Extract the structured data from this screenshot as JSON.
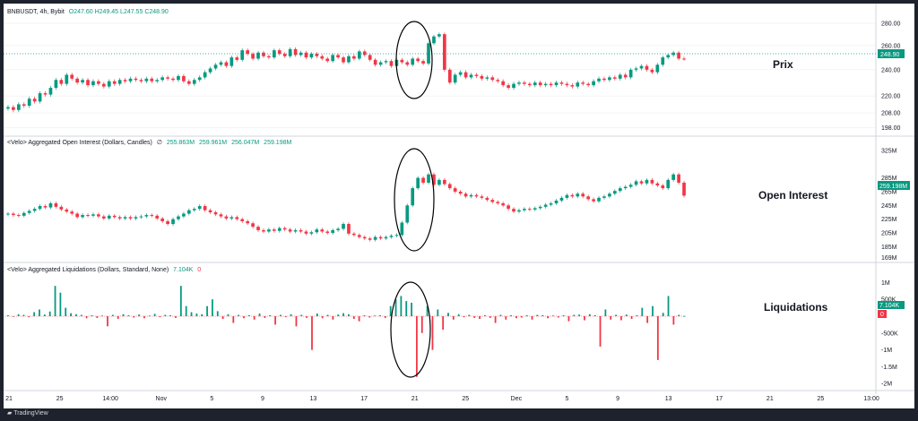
{
  "header": {
    "symbol": "BNBUSDT, 4h, Bybit",
    "ohlc": {
      "o": "247.60",
      "h": "249.45",
      "l": "247.55",
      "c": "248.90"
    }
  },
  "panes": {
    "oi": {
      "title": "<Velo> Aggregated Open Interest (Dollars, Candles)",
      "sym": "∅",
      "o": "255.863M",
      "h": "259.961M",
      "l": "256.047M",
      "c": "259.198M"
    },
    "liq": {
      "title": "<Velo> Aggregated Liquidations (Dollars, Standard, None)",
      "v1": "7.104K",
      "v2": "0"
    }
  },
  "annotations": {
    "price": "Prix",
    "oi": "Open Interest",
    "liq": "Liquidations"
  },
  "badges": {
    "price": "248.90",
    "oi": "259.198M",
    "liq": "7.104K",
    "liq_zero": "0"
  },
  "footer": {
    "brand": "TradingView"
  },
  "colors": {
    "up": "#089981",
    "down": "#f23645",
    "ellipse": "#000000",
    "grid": "#e6e8ec"
  },
  "chart_data": [
    {
      "type": "candlestick",
      "title": "BNBUSDT, 4h, Bybit",
      "y_ticks": [
        "280.00",
        "260.00",
        "240.00",
        "220.00",
        "208.00",
        "198.00"
      ],
      "ylim": [
        196,
        285
      ],
      "y_scale": "log",
      "x_ticks": [
        "21",
        "25",
        "14:00",
        "Nov",
        "5",
        "9",
        "13",
        "17",
        "21",
        "25",
        "Dec",
        "5",
        "9",
        "13",
        "17",
        "21",
        "25",
        "13:00"
      ],
      "last_close": 248.9,
      "closes": [
        212,
        210,
        214,
        213,
        218,
        216,
        222,
        221,
        226,
        232,
        229,
        236,
        233,
        230,
        232,
        228,
        231,
        229,
        227,
        231,
        229,
        232,
        231,
        233,
        232,
        231,
        233,
        231,
        232,
        234,
        233,
        232,
        235,
        231,
        229,
        232,
        234,
        238,
        241,
        244,
        246,
        243,
        250,
        248,
        256,
        253,
        249,
        254,
        251,
        250,
        256,
        253,
        251,
        257,
        252,
        254,
        250,
        253,
        251,
        249,
        247,
        252,
        250,
        246,
        251,
        249,
        255,
        252,
        248,
        244,
        246,
        247,
        243,
        248,
        246,
        244,
        249,
        247,
        245,
        262,
        268,
        270,
        240,
        230,
        236,
        238,
        234,
        236,
        235,
        233,
        234,
        232,
        231,
        228,
        226,
        229,
        230,
        229,
        228,
        230,
        228,
        229,
        228,
        230,
        229,
        228,
        227,
        230,
        229,
        228,
        231,
        233,
        232,
        234,
        233,
        236,
        234,
        240,
        241,
        243,
        240,
        238,
        244,
        250,
        252,
        254,
        249,
        248.9
      ]
    },
    {
      "type": "candlestick",
      "title": "<Velo> Aggregated Open Interest (Dollars, Candles)",
      "y_ticks": [
        "325M",
        "285M",
        "265M",
        "245M",
        "225M",
        "205M",
        "185M",
        "169M"
      ],
      "ylim": [
        166,
        330
      ],
      "last_close": 259.198,
      "closes": [
        233,
        231,
        230,
        234,
        237,
        240,
        244,
        242,
        248,
        243,
        239,
        236,
        233,
        228,
        231,
        230,
        232,
        229,
        226,
        230,
        228,
        226,
        228,
        226,
        228,
        229,
        231,
        230,
        226,
        222,
        218,
        225,
        229,
        233,
        238,
        240,
        244,
        238,
        235,
        232,
        229,
        226,
        228,
        225,
        222,
        219,
        214,
        209,
        207,
        210,
        208,
        212,
        210,
        207,
        209,
        207,
        204,
        206,
        210,
        207,
        205,
        209,
        211,
        218,
        204,
        202,
        199,
        197,
        195,
        199,
        197,
        199,
        201,
        202,
        220,
        245,
        270,
        285,
        278,
        290,
        275,
        282,
        276,
        270,
        265,
        262,
        258,
        260,
        258,
        256,
        253,
        250,
        248,
        245,
        240,
        236,
        238,
        240,
        239,
        241,
        243,
        246,
        248,
        252,
        256,
        260,
        258,
        262,
        258,
        254,
        251,
        256,
        258,
        262,
        266,
        270,
        272,
        275,
        280,
        277,
        282,
        277,
        274,
        270,
        282,
        290,
        278,
        259.198
      ]
    },
    {
      "type": "bar",
      "title": "<Velo> Aggregated Liquidations (Dollars, Standard, None)",
      "y_ticks": [
        "1M",
        "500K",
        "-500K",
        "-1M",
        "-1.5M",
        "-2M"
      ],
      "ylim": [
        -2100000,
        1250000
      ],
      "last_value": 7104,
      "values": [
        30000,
        -20000,
        60000,
        40000,
        -30000,
        120000,
        200000,
        50000,
        140000,
        900000,
        700000,
        250000,
        90000,
        60000,
        40000,
        -60000,
        30000,
        -50000,
        20000,
        -300000,
        40000,
        -80000,
        60000,
        30000,
        -40000,
        50000,
        -60000,
        20000,
        70000,
        -30000,
        40000,
        30000,
        -50000,
        900000,
        300000,
        120000,
        80000,
        60000,
        300000,
        500000,
        150000,
        -80000,
        60000,
        -200000,
        40000,
        -60000,
        30000,
        -100000,
        80000,
        -50000,
        30000,
        -250000,
        40000,
        -30000,
        60000,
        -300000,
        40000,
        -50000,
        -1000000,
        80000,
        -60000,
        40000,
        -100000,
        50000,
        90000,
        60000,
        -80000,
        -150000,
        30000,
        -40000,
        20000,
        30000,
        -50000,
        300000,
        500000,
        600000,
        450000,
        400000,
        -1800000,
        -500000,
        300000,
        -1000000,
        200000,
        -400000,
        100000,
        -100000,
        60000,
        -30000,
        40000,
        -50000,
        -80000,
        30000,
        -50000,
        -200000,
        40000,
        -100000,
        30000,
        -60000,
        -40000,
        30000,
        -100000,
        40000,
        30000,
        -60000,
        20000,
        -40000,
        30000,
        -150000,
        40000,
        50000,
        -120000,
        60000,
        30000,
        -900000,
        200000,
        -100000,
        40000,
        -120000,
        50000,
        -80000,
        30000,
        250000,
        -200000,
        300000,
        -1300000,
        100000,
        600000,
        -250000,
        40000,
        7104
      ]
    }
  ]
}
